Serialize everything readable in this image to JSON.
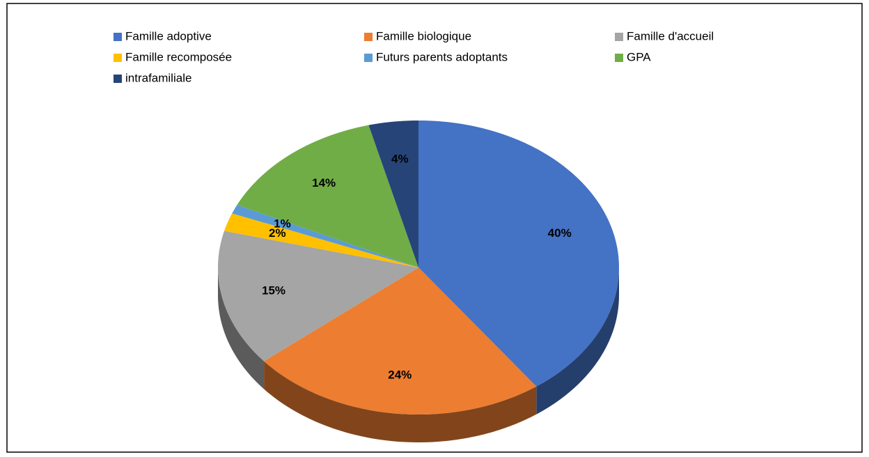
{
  "chart_data": {
    "type": "pie",
    "categories": [
      "Famille adoptive",
      "Famille biologique",
      "Famille d'accueil",
      "Famille recomposée",
      "Futurs parents adoptants",
      "GPA",
      "intrafamiliale"
    ],
    "values": [
      40,
      24,
      15,
      2,
      1,
      14,
      4
    ],
    "value_labels": [
      "40%",
      "24%",
      "15%",
      "2%",
      "1%",
      "14%",
      "4%"
    ],
    "colors": [
      "#4472c4",
      "#ed7d31",
      "#a5a5a5",
      "#ffc000",
      "#5b9bd5",
      "#70ad47",
      "#264478"
    ],
    "legend": "top"
  }
}
